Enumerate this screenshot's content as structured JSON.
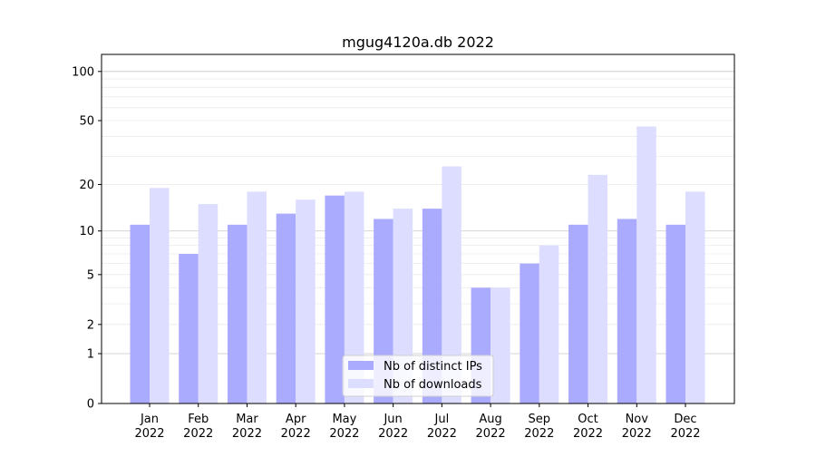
{
  "chart_data": {
    "type": "bar",
    "title": "mgug4120a.db 2022",
    "xlabel": "",
    "ylabel": "",
    "yscale": "symlog",
    "ylim": [
      0,
      127
    ],
    "yticks": [
      0,
      1,
      2,
      5,
      10,
      20,
      50,
      100
    ],
    "grid": true,
    "legend_position": "bottom-center",
    "categories": [
      "Jan\n2022",
      "Feb\n2022",
      "Mar\n2022",
      "Apr\n2022",
      "May\n2022",
      "Jun\n2022",
      "Jul\n2022",
      "Aug\n2022",
      "Sep\n2022",
      "Oct\n2022",
      "Nov\n2022",
      "Dec\n2022"
    ],
    "series": [
      {
        "name": "Nb of distinct IPs",
        "color": "#aaaaff",
        "values": [
          11,
          7,
          11,
          13,
          17,
          12,
          14,
          4,
          6,
          11,
          12,
          11
        ]
      },
      {
        "name": "Nb of downloads",
        "color": "#ddddff",
        "values": [
          19,
          15,
          18,
          16,
          18,
          14,
          26,
          4,
          8,
          23,
          46,
          18
        ]
      }
    ]
  }
}
